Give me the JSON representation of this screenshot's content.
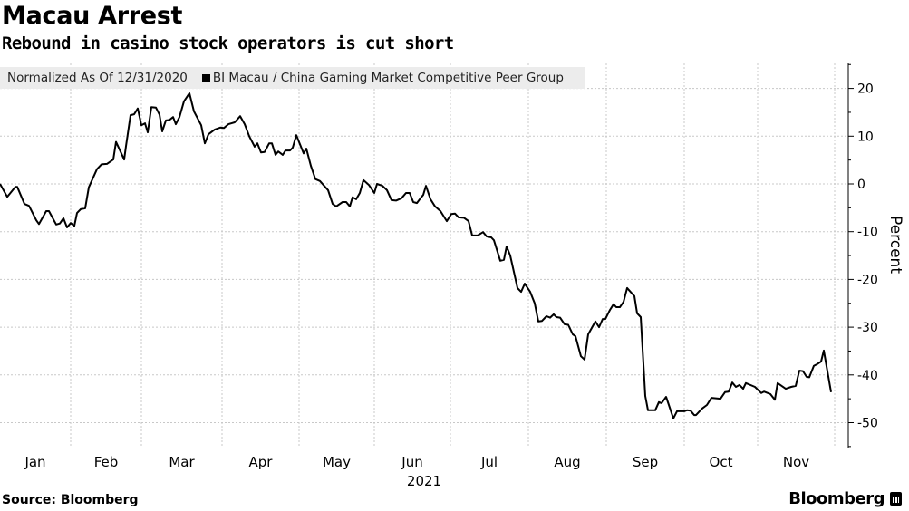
{
  "header": {
    "title": "Macau Arrest",
    "subtitle": "Rebound in casino stock operators is cut short"
  },
  "legend": {
    "note": "Normalized As Of 12/31/2020",
    "series_label": "BI Macau / China Gaming Market Competitive Peer Group"
  },
  "footer": {
    "source": "Source: Bloomberg",
    "brand": "Bloomberg"
  },
  "chart_data": {
    "type": "line",
    "title": "Macau Arrest",
    "subtitle": "Rebound in casino stock operators is cut short",
    "xlabel": "2021",
    "ylabel": "Percent",
    "ylim": [
      -55,
      25
    ],
    "yticks": [
      20,
      10,
      0,
      -10,
      -20,
      -30,
      -40,
      -50
    ],
    "ytick_labels": [
      "20",
      "10",
      "0",
      "-10",
      "-20",
      "-30",
      "-40",
      "-50"
    ],
    "grid": true,
    "legend_position": "top-left",
    "x_unit": "trading-day index since 12/31/2020",
    "month_starts": [
      0,
      19.5,
      39,
      61.25,
      82.5,
      103.25,
      124.25,
      145.75,
      167.25,
      188.75,
      209,
      230.25
    ],
    "month_labels": [
      "Jan",
      "Feb",
      "Mar",
      "Apr",
      "May",
      "Jun",
      "Jul",
      "Aug",
      "Sep",
      "Oct",
      "Nov"
    ],
    "series": [
      {
        "name": "BI Macau / China Gaming Market Competitive Peer Group",
        "color": "#000000",
        "points": [
          [
            0,
            0
          ],
          [
            2,
            -2.7
          ],
          [
            4.25,
            -0.6
          ],
          [
            4.75,
            -0.6
          ],
          [
            6.75,
            -4.2
          ],
          [
            8,
            -4.6
          ],
          [
            10,
            -7.6
          ],
          [
            10.75,
            -8.4
          ],
          [
            12.75,
            -5.7
          ],
          [
            13.5,
            -5.7
          ],
          [
            15.5,
            -8.5
          ],
          [
            16.5,
            -8.3
          ],
          [
            17.5,
            -7.2
          ],
          [
            18.5,
            -9.1
          ],
          [
            19.5,
            -8.2
          ],
          [
            20.5,
            -8.8
          ],
          [
            21.25,
            -6.1
          ],
          [
            22.25,
            -5.3
          ],
          [
            23.5,
            -5.1
          ],
          [
            24.5,
            -0.7
          ],
          [
            26.75,
            3.1
          ],
          [
            28,
            4.1
          ],
          [
            29.5,
            4.2
          ],
          [
            31.25,
            5.1
          ],
          [
            32,
            8.8
          ],
          [
            34.25,
            5.1
          ],
          [
            34.75,
            7.9
          ],
          [
            36,
            14.4
          ],
          [
            37,
            14.6
          ],
          [
            38,
            15.8
          ],
          [
            39,
            12.3
          ],
          [
            40,
            12.7
          ],
          [
            40.75,
            10.8
          ],
          [
            41.75,
            16.1
          ],
          [
            43,
            16
          ],
          [
            44,
            14.5
          ],
          [
            44.75,
            11
          ],
          [
            45.75,
            13.3
          ],
          [
            46.75,
            13.4
          ],
          [
            47.75,
            14
          ],
          [
            48.5,
            12.5
          ],
          [
            49.5,
            14
          ],
          [
            50.75,
            17.3
          ],
          [
            52.25,
            19
          ],
          [
            53.5,
            15.2
          ],
          [
            55.5,
            12.3
          ],
          [
            56.5,
            8.5
          ],
          [
            57.5,
            10.4
          ],
          [
            59.25,
            11.4
          ],
          [
            60.75,
            11.8
          ],
          [
            61.75,
            11.7
          ],
          [
            63,
            12.5
          ],
          [
            64.75,
            12.9
          ],
          [
            66.25,
            14.2
          ],
          [
            67.5,
            12.5
          ],
          [
            68.75,
            10
          ],
          [
            70.25,
            7.8
          ],
          [
            71,
            8.5
          ],
          [
            72,
            6.6
          ],
          [
            73,
            6.7
          ],
          [
            74.25,
            8.5
          ],
          [
            75,
            8.5
          ],
          [
            76,
            6.1
          ],
          [
            76.75,
            6.8
          ],
          [
            78,
            6.1
          ],
          [
            78.75,
            7
          ],
          [
            80,
            7
          ],
          [
            80.75,
            7.6
          ],
          [
            81.75,
            10.2
          ],
          [
            83.75,
            6.4
          ],
          [
            84.5,
            7.4
          ],
          [
            85.75,
            3.8
          ],
          [
            87,
            1
          ],
          [
            88.25,
            0.6
          ],
          [
            90.5,
            -1.3
          ],
          [
            91.75,
            -4.2
          ],
          [
            92.75,
            -4.7
          ],
          [
            94.5,
            -3.8
          ],
          [
            95.5,
            -3.8
          ],
          [
            96.5,
            -4.7
          ],
          [
            97.25,
            -2.8
          ],
          [
            98.25,
            -3.2
          ],
          [
            99.25,
            -1.9
          ],
          [
            100.25,
            0.8
          ],
          [
            101.75,
            -0.2
          ],
          [
            103.25,
            -1.9
          ],
          [
            104,
            0
          ],
          [
            105.5,
            -0.4
          ],
          [
            106.75,
            -1.3
          ],
          [
            108,
            -3.4
          ],
          [
            109.25,
            -3.5
          ],
          [
            110.75,
            -3
          ],
          [
            112,
            -1.9
          ],
          [
            113,
            -1.9
          ],
          [
            114,
            -3.8
          ],
          [
            115,
            -4
          ],
          [
            116,
            -3
          ],
          [
            116.75,
            -2.3
          ],
          [
            117.5,
            -0.4
          ],
          [
            118.75,
            -3.2
          ],
          [
            120,
            -4.7
          ],
          [
            121.5,
            -5.7
          ],
          [
            123.25,
            -7.8
          ],
          [
            124.5,
            -6.3
          ],
          [
            125.5,
            -6.2
          ],
          [
            126.5,
            -7
          ],
          [
            128,
            -7.1
          ],
          [
            129.25,
            -7.8
          ],
          [
            130.25,
            -10.8
          ],
          [
            131.75,
            -10.8
          ],
          [
            133.25,
            -10.1
          ],
          [
            134.25,
            -11
          ],
          [
            135.5,
            -11.2
          ],
          [
            136.25,
            -11.8
          ],
          [
            138,
            -16.1
          ],
          [
            139,
            -15.9
          ],
          [
            139.75,
            -13.1
          ],
          [
            140.75,
            -15
          ],
          [
            142.75,
            -21.8
          ],
          [
            143.75,
            -22.6
          ],
          [
            144.75,
            -20.9
          ],
          [
            146.25,
            -22.6
          ],
          [
            147.5,
            -25
          ],
          [
            148.5,
            -28.8
          ],
          [
            149.5,
            -28.7
          ],
          [
            150.75,
            -27.7
          ],
          [
            151.75,
            -28
          ],
          [
            152.75,
            -27.3
          ],
          [
            153.5,
            -27.9
          ],
          [
            154.5,
            -28
          ],
          [
            155.75,
            -29.4
          ],
          [
            156.75,
            -29.5
          ],
          [
            158,
            -31.5
          ],
          [
            158.75,
            -31.9
          ],
          [
            160.25,
            -36.1
          ],
          [
            161.25,
            -36.8
          ],
          [
            162.25,
            -31.5
          ],
          [
            164.25,
            -28.8
          ],
          [
            165.25,
            -30
          ],
          [
            166.25,
            -28.3
          ],
          [
            167,
            -28.3
          ],
          [
            168.25,
            -26.4
          ],
          [
            169.25,
            -25.2
          ],
          [
            170,
            -25.8
          ],
          [
            171,
            -25.8
          ],
          [
            172,
            -24.7
          ],
          [
            173,
            -21.8
          ],
          [
            175,
            -23.5
          ],
          [
            175.75,
            -27.1
          ],
          [
            176.75,
            -27.9
          ],
          [
            178,
            -44.4
          ],
          [
            178.75,
            -47.4
          ],
          [
            180.75,
            -47.4
          ],
          [
            181.75,
            -45.7
          ],
          [
            182.5,
            -45.9
          ],
          [
            183.75,
            -44.6
          ],
          [
            185.75,
            -49.1
          ],
          [
            186.75,
            -47.6
          ],
          [
            188.75,
            -47.6
          ],
          [
            189.5,
            -47.4
          ],
          [
            190.5,
            -47.5
          ],
          [
            191.5,
            -48.4
          ],
          [
            192,
            -48.4
          ],
          [
            193.75,
            -47
          ],
          [
            195,
            -46.3
          ],
          [
            196.25,
            -44.8
          ],
          [
            198.75,
            -45
          ],
          [
            200,
            -43.6
          ],
          [
            201,
            -43.5
          ],
          [
            202,
            -41.6
          ],
          [
            203,
            -42.5
          ],
          [
            204,
            -42.1
          ],
          [
            205,
            -42.9
          ],
          [
            205.75,
            -41.7
          ],
          [
            208.25,
            -42.5
          ],
          [
            210,
            -43.8
          ],
          [
            210.75,
            -43.5
          ],
          [
            212.5,
            -44
          ],
          [
            213.75,
            -45.2
          ],
          [
            214.5,
            -41.7
          ],
          [
            216.75,
            -42.9
          ],
          [
            218.25,
            -42.5
          ],
          [
            219.5,
            -42.3
          ],
          [
            220.5,
            -39.1
          ],
          [
            221.5,
            -39.2
          ],
          [
            222.5,
            -40.4
          ],
          [
            223.25,
            -40.5
          ],
          [
            224.5,
            -38.1
          ],
          [
            225.5,
            -37.7
          ],
          [
            226.5,
            -37.2
          ],
          [
            227.25,
            -34.9
          ],
          [
            229.25,
            -43.6
          ]
        ]
      }
    ]
  }
}
